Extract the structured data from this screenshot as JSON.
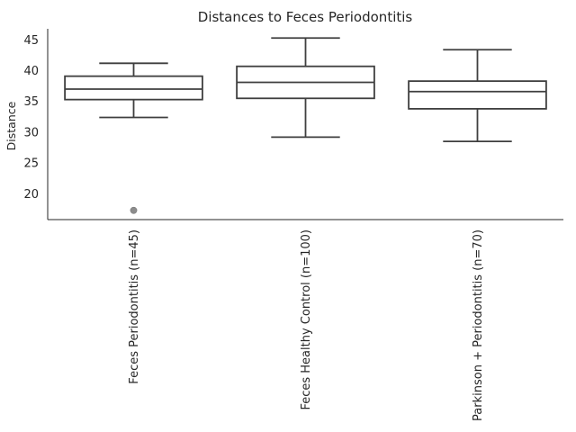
{
  "chart_data": {
    "type": "box",
    "title": "Distances to Feces Periodontitis",
    "xlabel": "",
    "ylabel": "Distance",
    "ylim": [
      15.8,
      46.8
    ],
    "yticks": [
      20,
      25,
      30,
      35,
      40,
      45
    ],
    "grid": false,
    "categories": [
      "Feces Periodontitis (n=45)",
      "Feces Healthy Control (n=100)",
      "Parkinson + Periodontitis (n=70)"
    ],
    "boxes": [
      {
        "whisker_low": 32.4,
        "q1": 35.3,
        "median": 37.0,
        "q3": 39.1,
        "whisker_high": 41.2,
        "outliers": [
          17.3
        ]
      },
      {
        "whisker_low": 29.2,
        "q1": 35.5,
        "median": 38.1,
        "q3": 40.7,
        "whisker_high": 45.3,
        "outliers": []
      },
      {
        "whisker_low": 28.5,
        "q1": 33.8,
        "median": 36.6,
        "q3": 38.3,
        "whisker_high": 43.4,
        "outliers": []
      }
    ],
    "colors": {
      "box_edge": "#3f3f3f",
      "outlier": "#8c8c8c",
      "axis": "#262626"
    }
  }
}
